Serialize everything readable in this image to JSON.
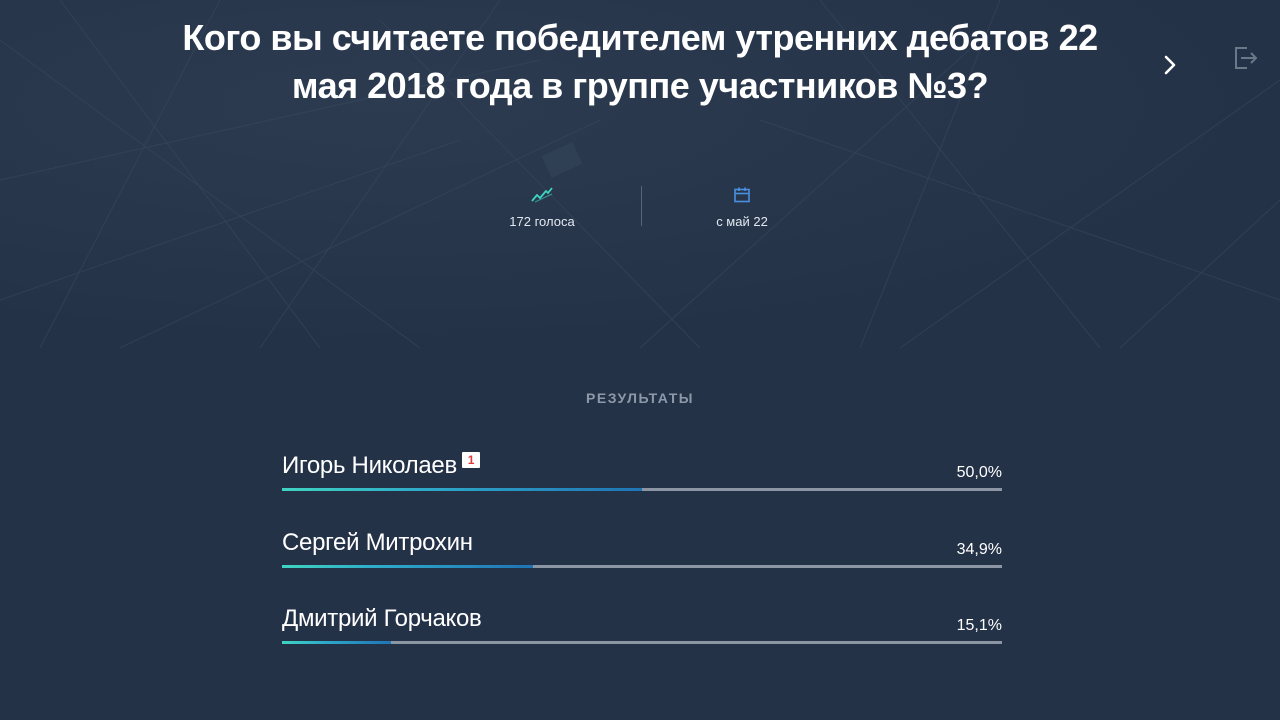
{
  "question": {
    "title_line1": "Кого вы считаете победителем утренних дебатов 22",
    "title_line2": "мая 2018 года в группе участников №3?"
  },
  "nav": {
    "next_icon": "chevron-right-icon",
    "exit_icon": "exit-icon"
  },
  "stats": {
    "votes_label": "172 голоса",
    "votes_icon": "trend-line-icon",
    "date_label": "с май 22",
    "date_icon": "calendar-icon",
    "accent_color": "#3fd4c1",
    "date_icon_color": "#4a90e2"
  },
  "results": {
    "heading": "РЕЗУЛЬТАТЫ",
    "items": [
      {
        "name": "Игорь Николаев",
        "badge": "1",
        "percent_label": "50,0%",
        "percent": 50.0
      },
      {
        "name": "Сергей Митрохин",
        "badge": "",
        "percent_label": "34,9%",
        "percent": 34.9
      },
      {
        "name": "Дмитрий Горчаков",
        "badge": "",
        "percent_label": "15,1%",
        "percent": 15.1
      }
    ]
  }
}
